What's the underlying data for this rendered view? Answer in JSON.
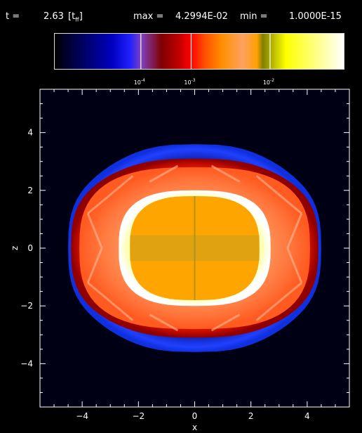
{
  "header": {
    "time_label": "t =",
    "time_value": "2.63",
    "time_unit": "[t",
    "time_unit_sub": "ff",
    "time_unit_close": "]",
    "max_label": "max =",
    "max_value": "4.2994E-02",
    "min_label": "min =",
    "min_value": "1.0000E-15"
  },
  "colorbar": {
    "tick_labels": [
      {
        "base": "10",
        "exp": "-4",
        "value": 0.0001
      },
      {
        "base": "10",
        "exp": "-3",
        "value": 0.001
      },
      {
        "base": "10",
        "exp": "-2",
        "value": 0.01
      }
    ],
    "scale": "log",
    "stops": [
      "#000000",
      "#000040",
      "#0000c0",
      "#2020ff",
      "#8040c0",
      "#800000",
      "#c00000",
      "#ff0000",
      "#ff5000",
      "#ff9000",
      "#ffa060",
      "#ffa000",
      "#808000",
      "#c0c000",
      "#ffff00",
      "#ffff80",
      "#ffffff"
    ]
  },
  "chart_data": {
    "type": "heatmap",
    "xlabel": "x",
    "ylabel": "z",
    "xlim": [
      -5.5,
      5.5
    ],
    "ylim": [
      -5.5,
      5.5
    ],
    "xticks": [
      -4,
      -2,
      0,
      2,
      4
    ],
    "yticks": [
      -4,
      -2,
      0,
      2,
      4
    ],
    "xtick_labels": [
      "−4",
      "−2",
      "0",
      "2",
      "4"
    ],
    "ytick_labels": [
      "−4",
      "−2",
      "0",
      "2",
      "4"
    ],
    "background_color": "#000015",
    "regions": [
      {
        "name": "outer-shell",
        "color": "#1030e0",
        "x_extent": [
          -4.5,
          4.5
        ],
        "z_extent": [
          -3.6,
          3.6
        ]
      },
      {
        "name": "red-layer",
        "color": "#d02000",
        "x_extent": [
          -4.4,
          4.4
        ],
        "z_extent": [
          -3.1,
          3.1
        ]
      },
      {
        "name": "orange-layer",
        "color": "#ff7a30",
        "x_extent": [
          -4.1,
          4.1
        ],
        "z_extent": [
          -2.8,
          2.8
        ]
      },
      {
        "name": "white-ring",
        "color": "#ffffd0",
        "x_extent": [
          -2.7,
          2.7
        ],
        "z_extent": [
          -2.0,
          2.0
        ]
      },
      {
        "name": "core",
        "color": "#ffa500",
        "x_extent": [
          -2.3,
          2.3
        ],
        "z_extent": [
          -1.8,
          1.8
        ]
      }
    ]
  }
}
